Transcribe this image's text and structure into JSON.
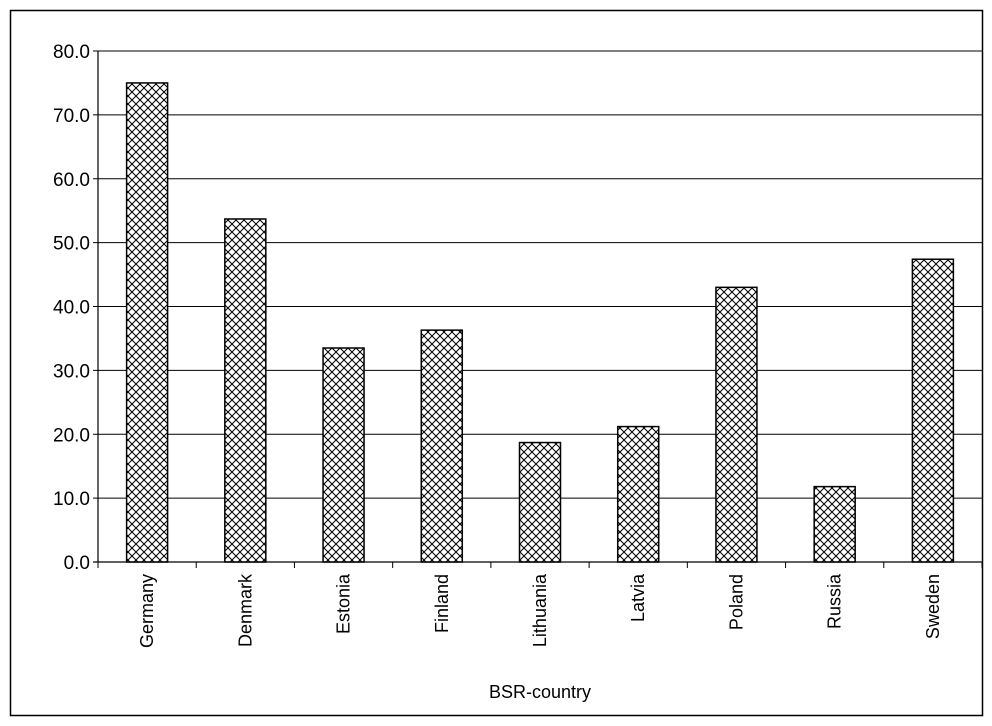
{
  "chart_data": {
    "type": "bar",
    "title": "",
    "xlabel": "BSR-country",
    "ylabel": "",
    "ylim": [
      0,
      80
    ],
    "yticks": [
      "0.0",
      "10.0",
      "20.0",
      "30.0",
      "40.0",
      "50.0",
      "60.0",
      "70.0",
      "80.0"
    ],
    "grid": true,
    "legend": "none",
    "bar_pattern": "crosshatch",
    "colors": {
      "bar_fill": "#ffffff",
      "bar_hatch": "#000000",
      "gridline": "#000000"
    },
    "categories": [
      "Germany",
      "Denmark",
      "Estonia",
      "Finland",
      "Lithuania",
      "Latvia",
      "Poland",
      "Russia",
      "Sweden"
    ],
    "values": [
      75.0,
      53.7,
      33.5,
      36.3,
      18.7,
      21.2,
      43.0,
      11.8,
      47.4
    ]
  }
}
